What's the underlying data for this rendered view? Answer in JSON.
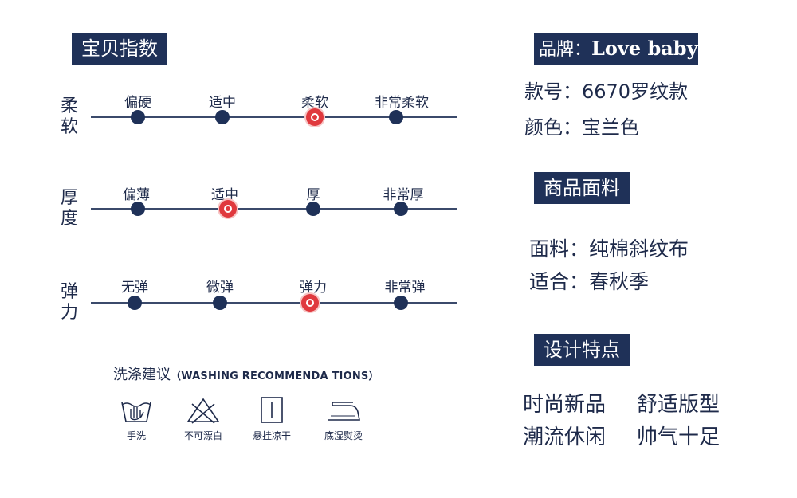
{
  "index": {
    "title": "宝贝指数",
    "rows": [
      {
        "label": "柔软",
        "options": [
          "偏硬",
          "适中",
          "柔软",
          "非常柔软"
        ],
        "selected": 2
      },
      {
        "label": "厚度",
        "options": [
          "偏薄",
          "适中",
          "厚",
          "非常厚"
        ],
        "selected": 1
      },
      {
        "label": "弹力",
        "options": [
          "无弹",
          "微弹",
          "弹力",
          "非常弹"
        ],
        "selected": 2
      }
    ]
  },
  "washing": {
    "title": "洗涤建议",
    "subtitle": "（WASHING RECOMMENDA TIONS）",
    "items": [
      {
        "icon": "hand-wash-icon",
        "label": "手洗"
      },
      {
        "icon": "no-bleach-icon",
        "label": "不可漂白"
      },
      {
        "icon": "hang-dry-icon",
        "label": "悬挂凉干"
      },
      {
        "icon": "low-iron-icon",
        "label": "底湿熨烫"
      }
    ]
  },
  "brand": {
    "label": "品牌：",
    "name": "Love baby",
    "model": "款号：6670罗纹款",
    "color": "颜色：宝兰色"
  },
  "fabric": {
    "title": "商品面料",
    "material": "面料：纯棉斜纹布",
    "season": "适合：春秋季"
  },
  "design": {
    "title": "设计特点",
    "features": [
      "时尚新品",
      "舒适版型",
      "潮流休闲",
      "帅气十足"
    ]
  },
  "colors": {
    "navy": "#1f3158",
    "red": "#e0393e",
    "text": "#1e2a4a"
  }
}
